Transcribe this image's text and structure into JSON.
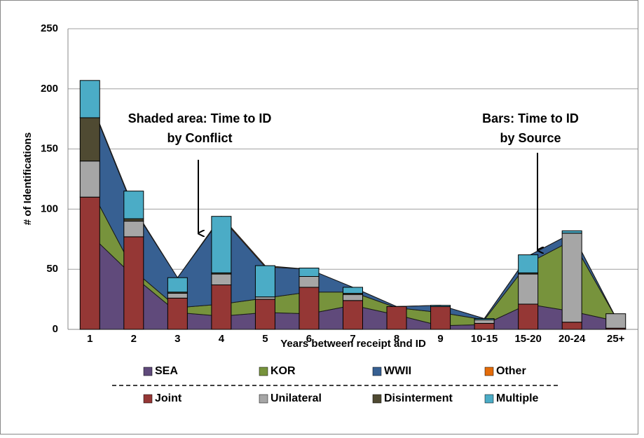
{
  "chart_data": {
    "type": "combo",
    "xlabel": "Years between receipt and ID",
    "ylabel": "# of Identifications",
    "categories": [
      "1",
      "2",
      "3",
      "4",
      "5",
      "6",
      "7",
      "8",
      "9",
      "10-15",
      "15-20",
      "20-24",
      "25+"
    ],
    "ylim": [
      0,
      250
    ],
    "yticks": [
      0,
      50,
      100,
      150,
      200,
      250
    ],
    "grid": true,
    "series": [
      {
        "name": "SEA",
        "color": "#604a7b",
        "values": [
          79,
          44,
          14,
          11,
          14,
          13,
          20,
          12,
          3,
          4,
          21,
          15,
          7
        ]
      },
      {
        "name": "KOR",
        "color": "#77933c",
        "values": [
          39,
          5,
          4,
          10,
          12,
          18,
          11,
          6,
          11,
          4,
          34,
          59,
          3
        ]
      },
      {
        "name": "WWII",
        "color": "#376092",
        "values": [
          72,
          51,
          25,
          72,
          26,
          19,
          4,
          1,
          6,
          1,
          6,
          6,
          0
        ]
      },
      {
        "name": "Other",
        "color": "#e46c0a",
        "values": [
          1,
          1,
          0,
          1,
          1,
          0,
          0,
          0,
          0,
          0,
          0,
          0,
          0
        ]
      }
    ],
    "bar_series": [
      {
        "name": "Joint",
        "color": "#953735",
        "values": [
          110,
          77,
          26,
          37,
          25,
          35,
          24,
          19,
          19,
          5,
          21,
          6,
          1
        ]
      },
      {
        "name": "Unilateral",
        "color": "#a6a6a6",
        "values": [
          30,
          13,
          4,
          9,
          2,
          9,
          5,
          0,
          0,
          3,
          25,
          74,
          12
        ]
      },
      {
        "name": "Disinterment",
        "color": "#4f4a32",
        "values": [
          36,
          2,
          1,
          1,
          0,
          0,
          1,
          0,
          0,
          0,
          1,
          0,
          0
        ]
      },
      {
        "name": "Multiple",
        "color": "#4bacc6",
        "values": [
          31,
          23,
          12,
          47,
          26,
          7,
          5,
          0,
          1,
          1,
          15,
          2,
          0
        ]
      }
    ],
    "annotations": [
      {
        "lines": [
          "Shaded area: Time to ID",
          "by Conflict"
        ]
      },
      {
        "lines": [
          "Bars: Time to ID",
          "by Source"
        ]
      }
    ]
  }
}
